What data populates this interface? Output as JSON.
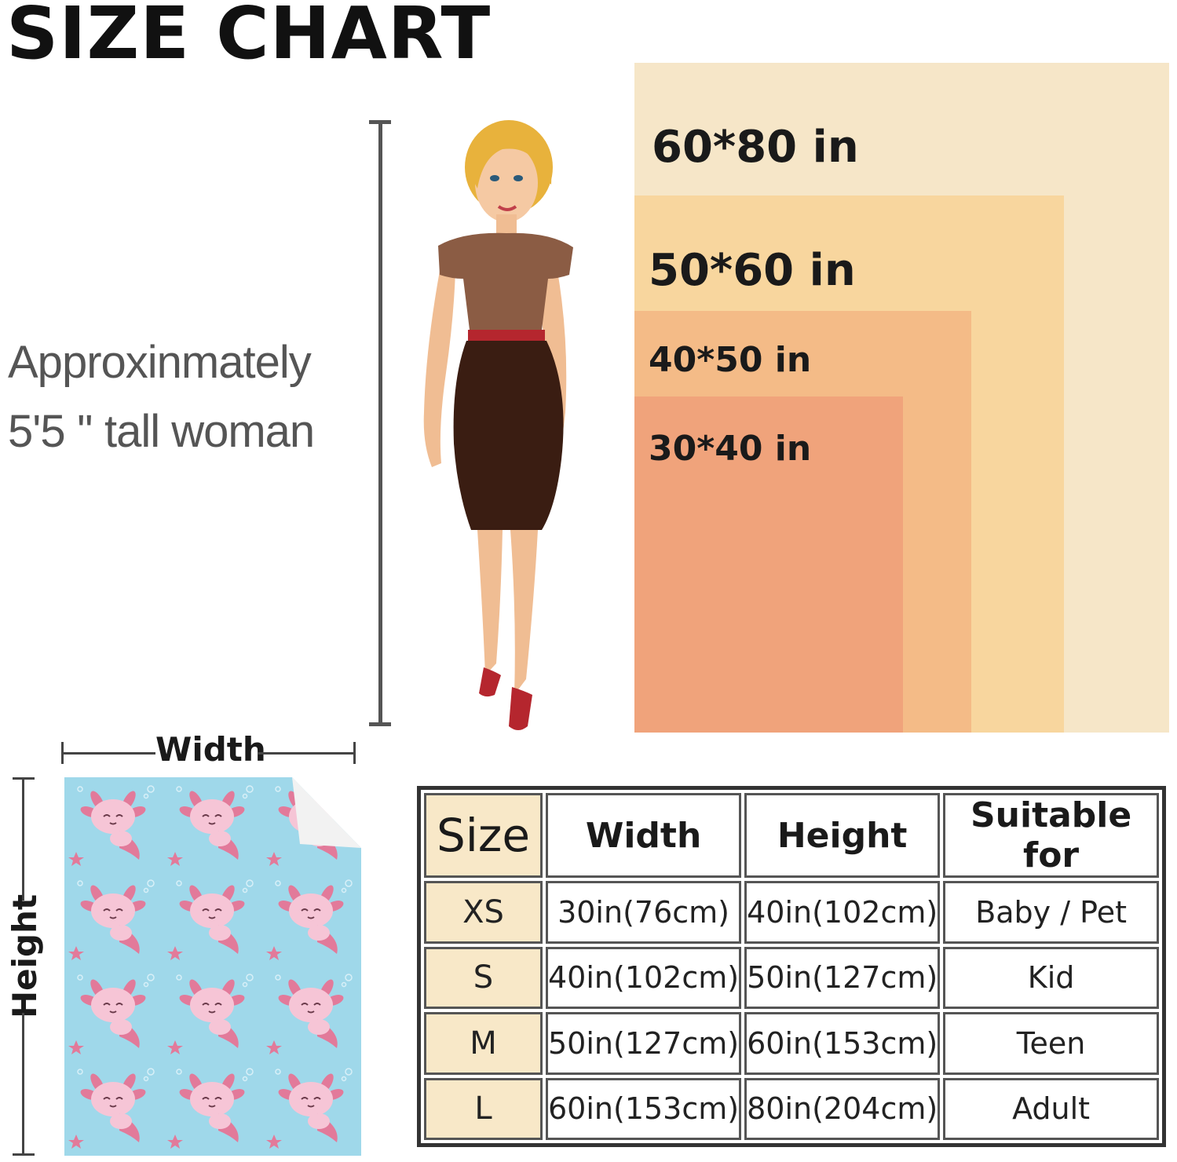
{
  "title": "SIZE CHART",
  "model_note": {
    "line1": "Approxinmately",
    "line2": "5'5 '' tall woman"
  },
  "size_rects": [
    {
      "label": "60*80 in",
      "color": "#f6e6c8"
    },
    {
      "label": "50*60 in",
      "color": "#f8d69e"
    },
    {
      "label": "40*50 in",
      "color": "#f4bb87"
    },
    {
      "label": "30*40 in",
      "color": "#f0a37b"
    }
  ],
  "blanket": {
    "width_label": "Width",
    "height_label": "Height",
    "background": "#9fd8ea",
    "pattern": "pink axolotl and star pattern"
  },
  "table": {
    "headers": [
      "Size",
      "Width",
      "Height",
      "Suitable for"
    ],
    "rows": [
      {
        "size": "XS",
        "width": "30in(76cm)",
        "height": "40in(102cm)",
        "suitable": "Baby / Pet"
      },
      {
        "size": "S",
        "width": "40in(102cm)",
        "height": "50in(127cm)",
        "suitable": "Kid"
      },
      {
        "size": "M",
        "width": "50in(127cm)",
        "height": "60in(153cm)",
        "suitable": "Teen"
      },
      {
        "size": "L",
        "width": "60in(153cm)",
        "height": "80in(204cm)",
        "suitable": "Adult"
      }
    ]
  }
}
